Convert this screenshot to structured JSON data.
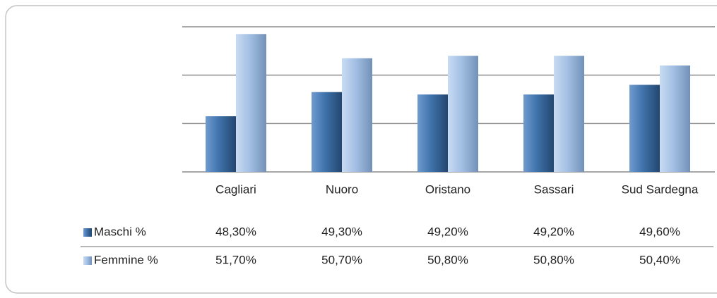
{
  "chart_data": {
    "type": "bar",
    "categories": [
      "Cagliari",
      "Nuoro",
      "Oristano",
      "Sassari",
      "Sud Sardegna"
    ],
    "series": [
      {
        "name": "Maschi %",
        "color": "#3f72aa",
        "values": [
          48.3,
          49.3,
          49.2,
          49.2,
          49.6
        ],
        "value_labels": [
          "48,30%",
          "49,30%",
          "49,20%",
          "49,20%",
          "49,60%"
        ]
      },
      {
        "name": "Femmine %",
        "color": "#a3bfe3",
        "values": [
          51.7,
          50.7,
          50.8,
          50.8,
          50.4
        ],
        "value_labels": [
          "51,70%",
          "50,70%",
          "50,80%",
          "50,80%",
          "50,40%"
        ]
      }
    ],
    "ylim": [
      46,
      52
    ],
    "yticks": [
      46,
      48,
      50,
      52
    ],
    "grid": true,
    "data_table": true
  }
}
